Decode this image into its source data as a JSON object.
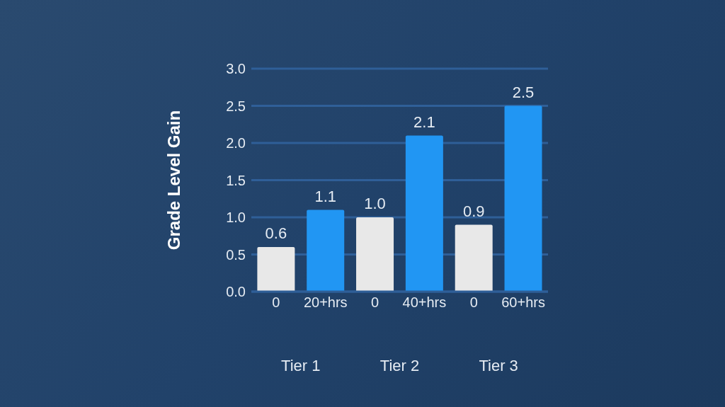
{
  "chart_data": {
    "type": "bar",
    "ylabel": "Grade Level Gain",
    "categories": [
      "0",
      "20+hrs",
      "0",
      "40+hrs",
      "0",
      "60+hrs"
    ],
    "values": [
      0.6,
      1.1,
      1.0,
      2.1,
      0.9,
      2.5
    ],
    "colors": [
      "#e8e8e8",
      "#2196f3",
      "#e8e8e8",
      "#2196f3",
      "#e8e8e8",
      "#2196f3"
    ],
    "value_labels": [
      "0.6",
      "1.1",
      "1.0",
      "2.1",
      "0.9",
      "2.5"
    ],
    "ylim": [
      0,
      3
    ],
    "yticks": [
      {
        "value": 0,
        "label": "0.0"
      },
      {
        "value": 0.5,
        "label": "0.5"
      },
      {
        "value": 1,
        "label": "1.0"
      },
      {
        "value": 1.5,
        "label": "1.5"
      },
      {
        "value": 2,
        "label": "2.0"
      },
      {
        "value": 2.5,
        "label": "2.5"
      },
      {
        "value": 3,
        "label": "3.0"
      }
    ],
    "grid": "y",
    "annotations": [
      "Tier 1",
      "Tier 2",
      "Tier 3"
    ]
  }
}
